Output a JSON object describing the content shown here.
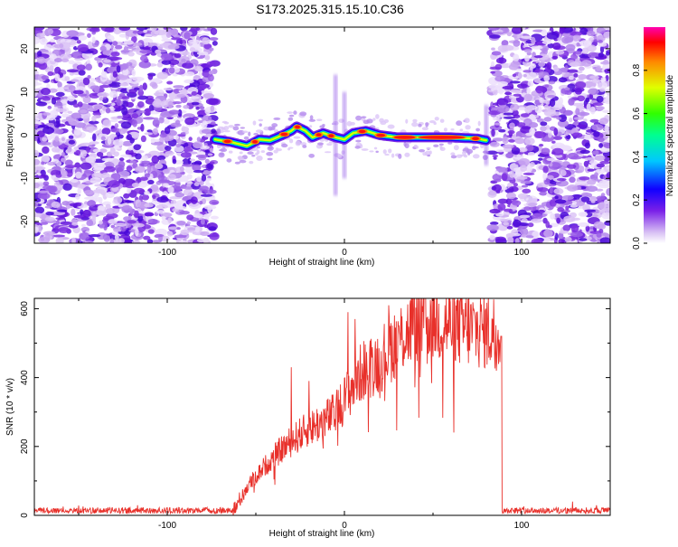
{
  "page_title": "S173.2025.315.15.10.C36",
  "chart_data": [
    {
      "type": "heatmap",
      "title": "S173.2025.315.15.10.C36",
      "xlabel": "Height of straight line (km)",
      "ylabel": "Frequency (Hz)",
      "xlim": [
        -175,
        150
      ],
      "ylim": [
        -25,
        25
      ],
      "x_ticks": [
        -100,
        0,
        100
      ],
      "y_ticks": [
        -20,
        -10,
        0,
        10,
        20
      ],
      "x_tick_labels": [
        "-100",
        "0",
        "100"
      ],
      "y_tick_labels": [
        "-20",
        "-10",
        "0",
        "10",
        "20"
      ],
      "noise_regions": [
        [
          -175,
          -73
        ],
        [
          83,
          150
        ]
      ],
      "signal_band": {
        "x": [
          -73,
          -65,
          -55,
          -48,
          -42,
          -35,
          -30,
          -27,
          -22,
          -18,
          -12,
          -5,
          0,
          5,
          12,
          20,
          30,
          45,
          60,
          75,
          80
        ],
        "freq": [
          -1,
          -1.5,
          -2.5,
          -1,
          -1.2,
          0,
          1,
          2,
          1,
          -0.5,
          0.5,
          -0.5,
          -1,
          0.5,
          1,
          0,
          -0.5,
          -0.5,
          -0.5,
          -0.8,
          -1.2
        ]
      },
      "colorbar": {
        "label": "Normalized spectral amplitude",
        "range": [
          0,
          1
        ],
        "ticks": [
          0.0,
          0.2,
          0.4,
          0.6,
          0.8
        ],
        "tick_labels": [
          "0.0",
          "0.2",
          "0.4",
          "0.6",
          "0.8"
        ],
        "colors": [
          "#ffffff",
          "#c8a8f0",
          "#6a10e8",
          "#0000ff",
          "#00c8ff",
          "#00ff80",
          "#40ff00",
          "#e0ff00",
          "#ff9000",
          "#ff0000",
          "#ff00a0"
        ]
      }
    },
    {
      "type": "line",
      "xlabel": "Height of straight line (km)",
      "ylabel": "SNR (10 * v/v)",
      "xlim": [
        -175,
        150
      ],
      "ylim": [
        0,
        630
      ],
      "x_ticks": [
        -100,
        0,
        100
      ],
      "y_ticks": [
        0,
        200,
        400,
        600
      ],
      "x_tick_labels": [
        "-100",
        "0",
        "100"
      ],
      "y_tick_labels": [
        "0",
        "200",
        "400",
        "600"
      ],
      "line_color": "#e8302a",
      "envelope": {
        "x": [
          -175,
          -100,
          -62,
          -55,
          -45,
          -35,
          -25,
          -15,
          -5,
          0,
          5,
          10,
          20,
          30,
          40,
          50,
          60,
          70,
          80,
          88,
          89,
          100,
          150
        ],
        "y": [
          15,
          15,
          15,
          80,
          140,
          190,
          230,
          260,
          290,
          330,
          370,
          410,
          440,
          500,
          540,
          555,
          540,
          530,
          525,
          520,
          15,
          15,
          15
        ]
      },
      "spikes": {
        "x": [
          -30,
          -20,
          2,
          6,
          25,
          38,
          62
        ],
        "y": [
          430,
          390,
          590,
          570,
          610,
          630,
          630
        ]
      }
    }
  ]
}
